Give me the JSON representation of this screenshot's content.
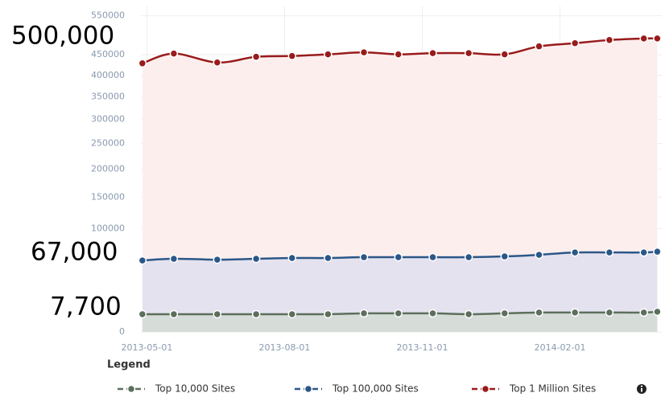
{
  "chart_data": {
    "type": "area",
    "x": [
      "2013-04-28",
      "2013-05-19",
      "2013-06-17",
      "2013-07-13",
      "2013-08-06",
      "2013-08-30",
      "2013-09-23",
      "2013-10-16",
      "2013-11-08",
      "2013-12-02",
      "2013-12-26",
      "2014-01-18",
      "2014-02-11",
      "2014-03-06",
      "2014-03-29",
      "2014-04-07"
    ],
    "series": [
      {
        "name": "Top 1 Million Sites",
        "color": "#991b1b",
        "fill": "#fdeeee",
        "values": [
          429000,
          453000,
          431000,
          445000,
          447000,
          451000,
          456000,
          451000,
          454000,
          454000,
          451000,
          471000,
          479000,
          487000,
          491000,
          491000
        ]
      },
      {
        "name": "Top 100,000 Sites",
        "color": "#2b5788",
        "fill": "#e5e2ef",
        "values": [
          57000,
          59000,
          58000,
          59000,
          60000,
          60000,
          61000,
          61000,
          61000,
          61000,
          62000,
          64000,
          67000,
          67000,
          67000,
          68000
        ]
      },
      {
        "name": "Top 10,000 Sites",
        "color": "#5c6f5c",
        "fill": "#d6dcd8",
        "values": [
          6800,
          6800,
          6800,
          6800,
          6800,
          6800,
          7300,
          7300,
          7300,
          6800,
          7300,
          7800,
          7800,
          7800,
          7800,
          8300
        ]
      }
    ],
    "xlim": [
      "2013-04-27",
      "2014-04-10"
    ],
    "xticks": [
      "2013-05-01",
      "2013-08-01",
      "2013-11-01",
      "2014-02-01"
    ],
    "ylim": [
      0,
      575000
    ],
    "yticks": [
      0,
      100000,
      150000,
      200000,
      250000,
      300000,
      350000,
      400000,
      450000,
      550000
    ],
    "y_scale": "pow",
    "y_exponent": 0.656,
    "grid": true,
    "legend_title": "Legend",
    "annotations": [
      "500,000",
      "67,000",
      "7,700"
    ]
  }
}
